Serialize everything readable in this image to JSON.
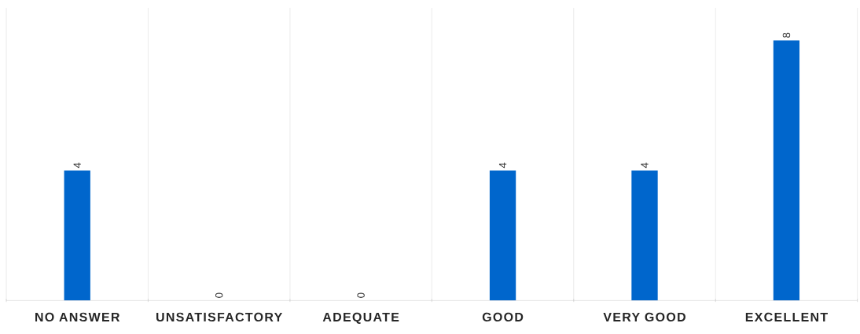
{
  "chart_data": {
    "type": "bar",
    "categories": [
      "NO ANSWER",
      "UNSATISFACTORY",
      "ADEQUATE",
      "GOOD",
      "VERY GOOD",
      "EXCELLENT"
    ],
    "values": [
      4,
      0,
      0,
      4,
      4,
      8
    ],
    "color": "#0066cc",
    "data_labels": true,
    "grid": "x"
  }
}
